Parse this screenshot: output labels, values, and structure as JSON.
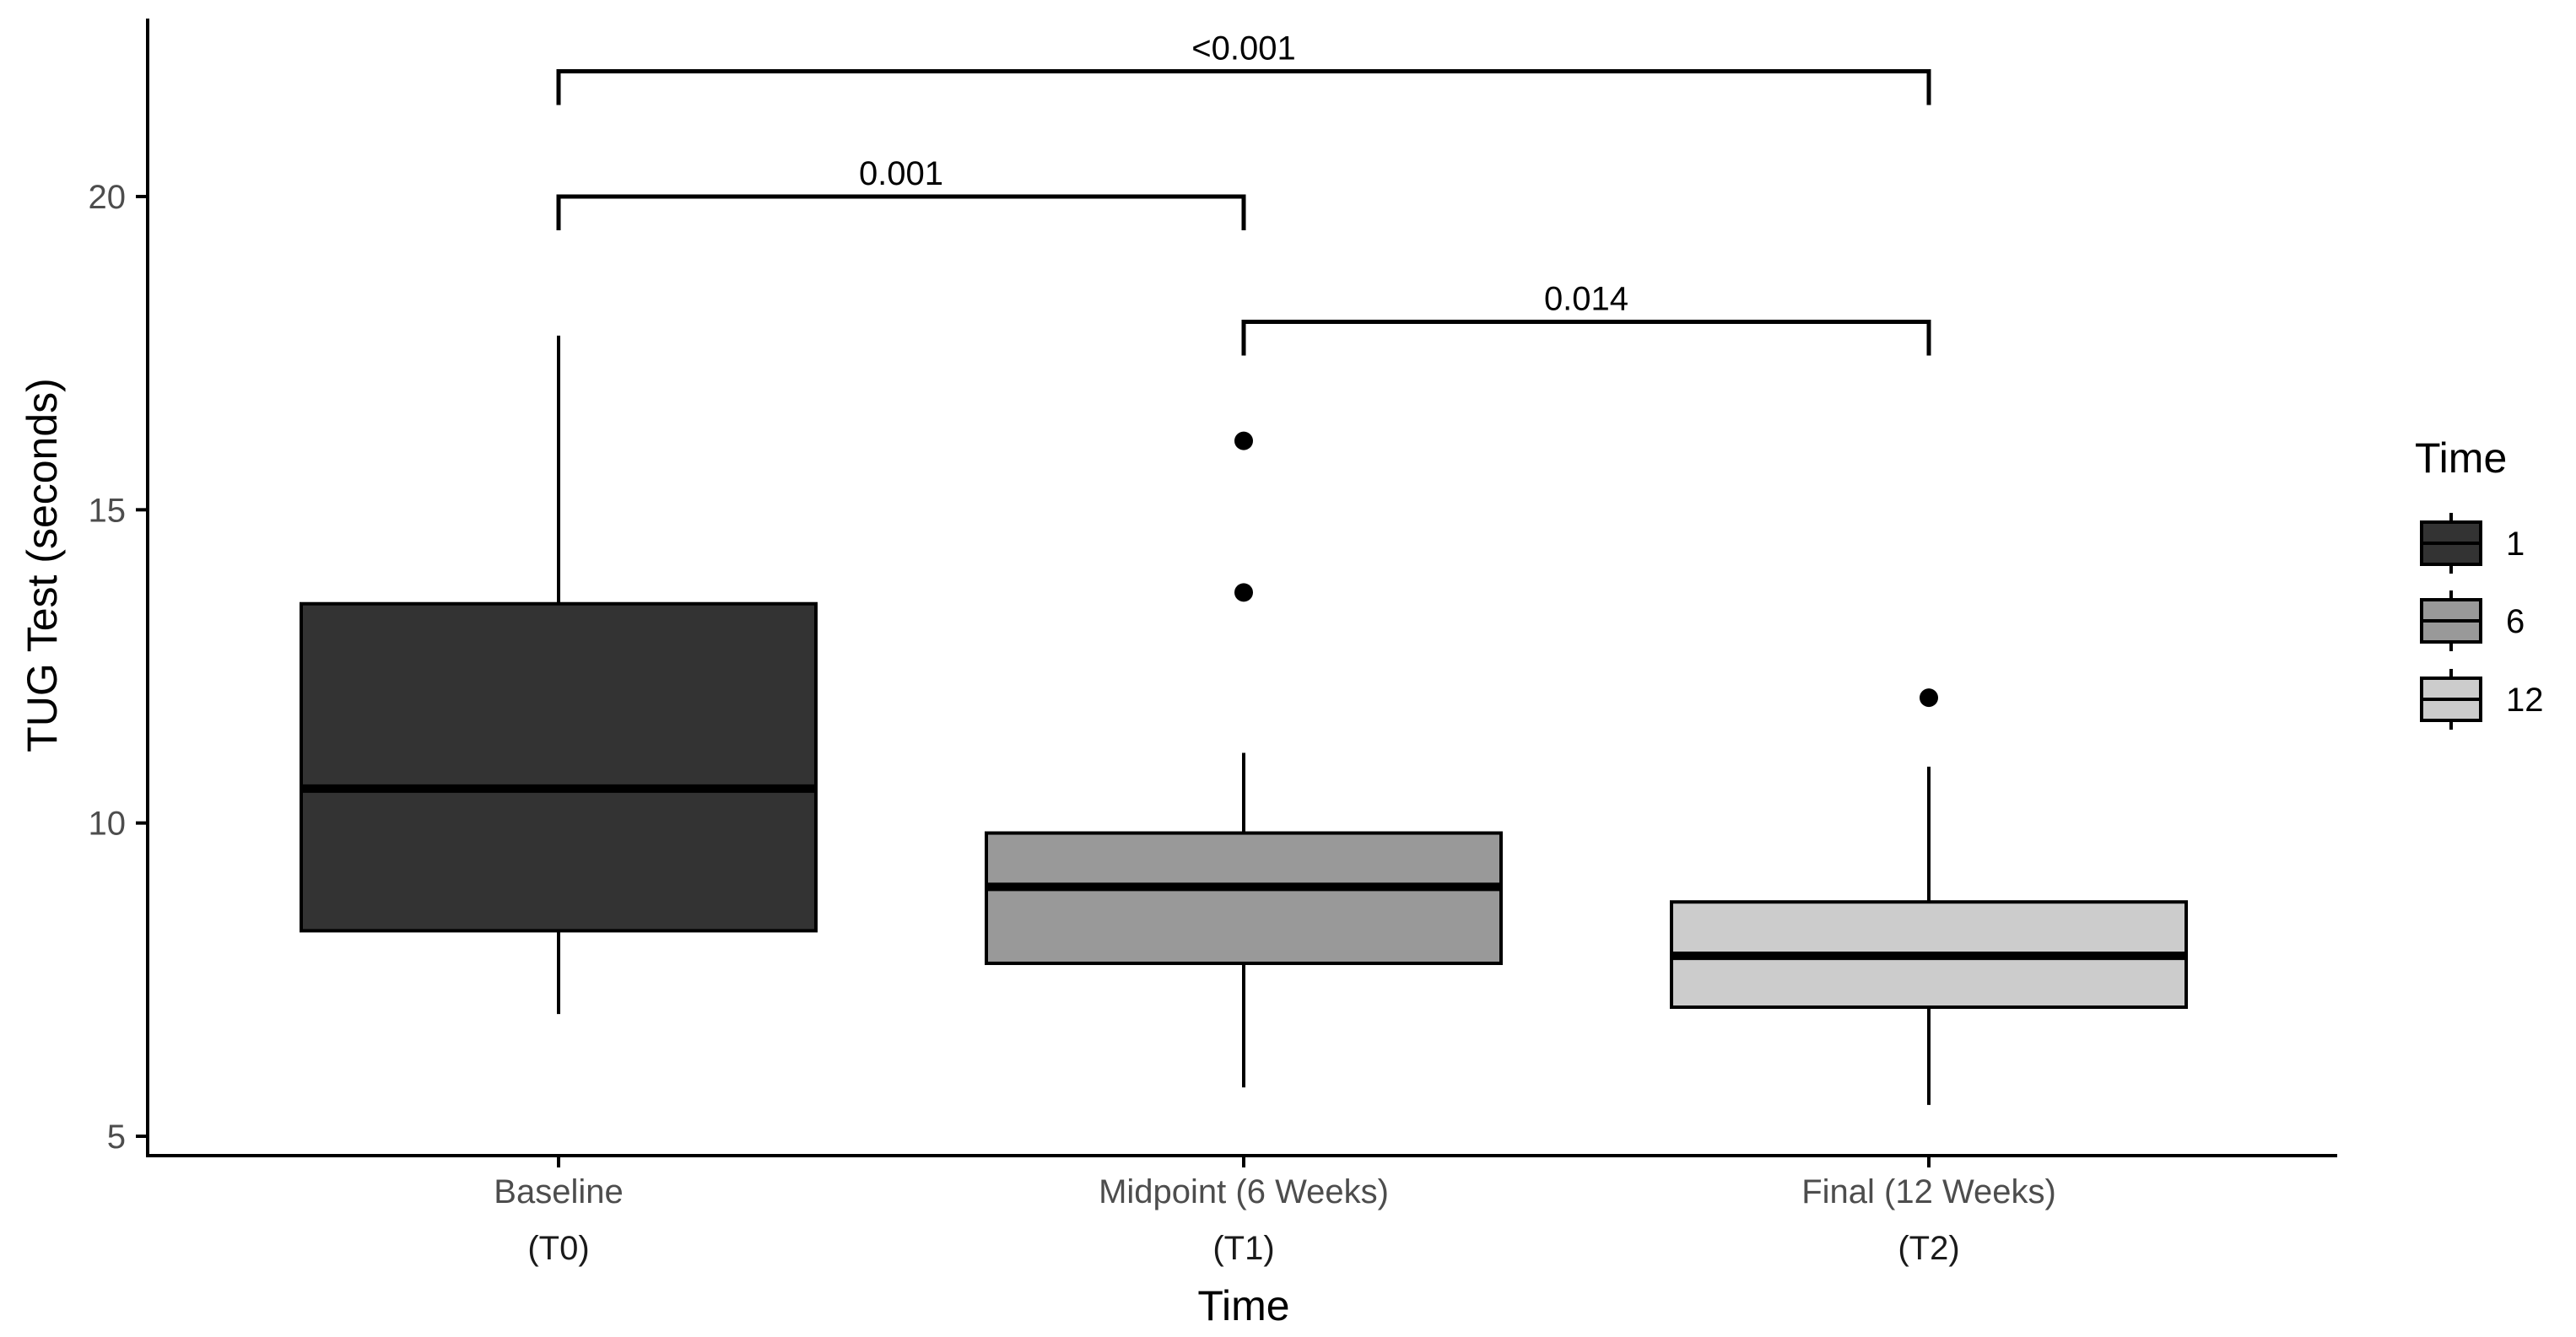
{
  "chart_data": {
    "type": "box",
    "xlabel": "Time",
    "ylabel": "TUG Test (seconds)",
    "ylim": [
      4.7,
      22.8
    ],
    "yticks": [
      5,
      10,
      15,
      20
    ],
    "grid": false,
    "categories": [
      {
        "line1": "Baseline",
        "line2": "(T0)"
      },
      {
        "line1": "Midpoint (6 Weeks)",
        "line2": "(T1)"
      },
      {
        "line1": "Final (12 Weeks)",
        "line2": "(T2)"
      }
    ],
    "series": [
      {
        "legend": "1",
        "color": "#333333",
        "whisker_low": 6.95,
        "q1": 8.28,
        "median": 10.55,
        "q3": 13.5,
        "whisker_high": 17.78,
        "outliers": []
      },
      {
        "legend": "6",
        "color": "#999999",
        "whisker_low": 5.78,
        "q1": 7.76,
        "median": 8.98,
        "q3": 9.84,
        "whisker_high": 11.12,
        "outliers": [
          16.1,
          13.68
        ]
      },
      {
        "legend": "12",
        "color": "#cccccc",
        "whisker_low": 5.5,
        "q1": 7.06,
        "median": 7.88,
        "q3": 8.74,
        "whisker_high": 10.9,
        "outliers": [
          12.0
        ]
      }
    ],
    "comparisons": [
      {
        "from": 0,
        "to": 2,
        "y": 22.0,
        "label": "<0.001"
      },
      {
        "from": 0,
        "to": 1,
        "y": 20.0,
        "label": "0.001"
      },
      {
        "from": 1,
        "to": 2,
        "y": 18.0,
        "label": "0.014"
      }
    ],
    "legend_title": "Time",
    "legend_position": "right"
  }
}
